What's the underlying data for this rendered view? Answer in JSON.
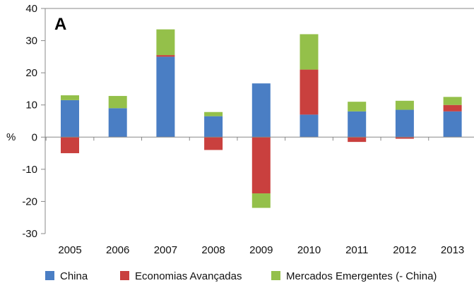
{
  "chart_data": {
    "type": "bar",
    "stacked": true,
    "panel_label": "A",
    "ylabel": "%",
    "xlabel": "",
    "title": "",
    "ylim": [
      -30,
      40
    ],
    "yticks": [
      -30,
      -20,
      -10,
      0,
      10,
      20,
      30,
      40
    ],
    "grid": false,
    "legend_position": "bottom",
    "categories": [
      "2005",
      "2006",
      "2007",
      "2008",
      "2009",
      "2010",
      "2011",
      "2012",
      "2013"
    ],
    "series": [
      {
        "name": "China",
        "color": "#4a7ec4",
        "values": [
          11.5,
          9,
          25,
          6.5,
          16.7,
          7,
          8,
          8.5,
          8
        ]
      },
      {
        "name": "Economias Avançadas",
        "color": "#c9403e",
        "values": [
          -5,
          0,
          0.5,
          -4,
          -17.5,
          14,
          -1.5,
          -0.5,
          2
        ]
      },
      {
        "name": "Mercados Emergentes (- China)",
        "color": "#94c04a",
        "values": [
          1.5,
          3.8,
          8,
          1.3,
          -4.5,
          11,
          3,
          2.8,
          2.5
        ]
      }
    ]
  }
}
